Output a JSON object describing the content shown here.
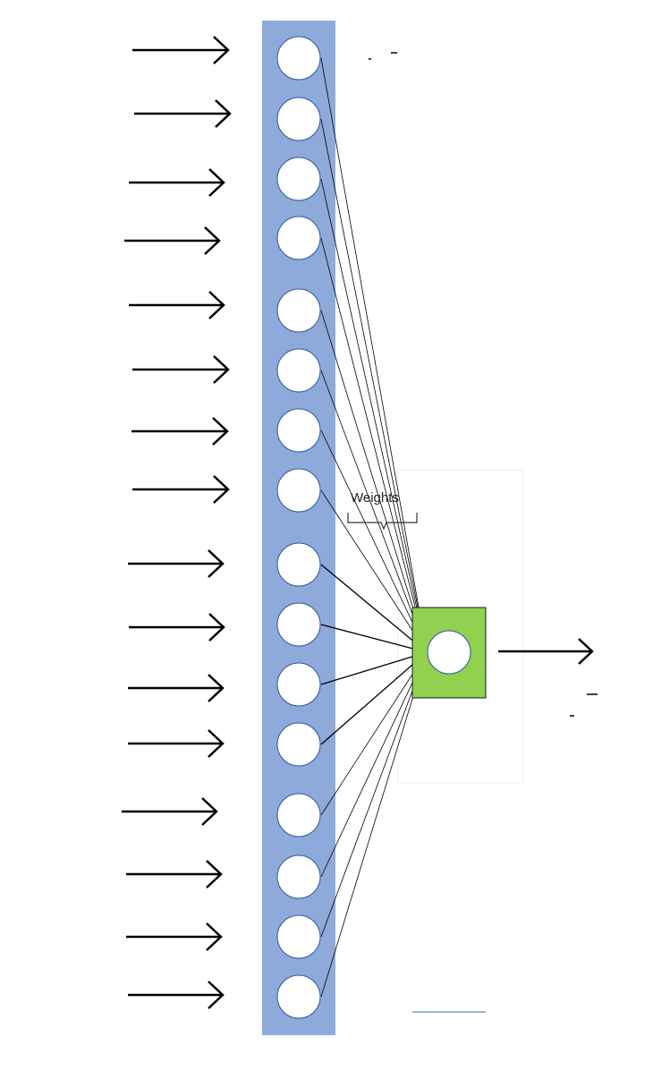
{
  "diagram": {
    "weights_label": "Weights",
    "input_count": 16,
    "output_count": 1,
    "colors": {
      "input_layer_fill": "#8eaadb",
      "input_layer_stroke": "#1a1a1a",
      "output_node_fill": "#92d050",
      "node_fill": "#ffffff",
      "node_stroke": "#2f5597",
      "arrow": "#000000",
      "connection": "#000000"
    }
  }
}
